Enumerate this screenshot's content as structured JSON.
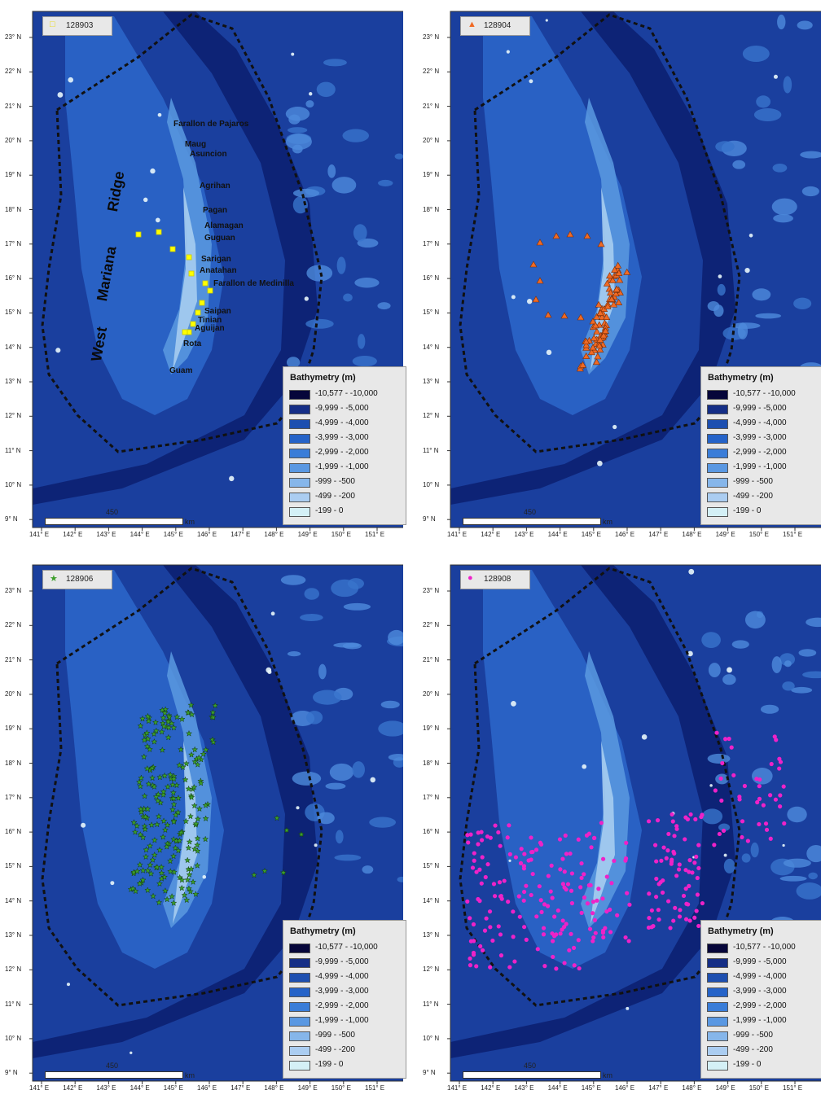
{
  "panels": [
    {
      "series": "128903",
      "symbol": "open-square",
      "symbol_glyph": "□",
      "color": "#ffff00"
    },
    {
      "series": "128904",
      "symbol": "triangle",
      "symbol_glyph": "▲",
      "color": "#f06a24"
    },
    {
      "series": "128906",
      "symbol": "star",
      "symbol_glyph": "★",
      "color": "#3c9e2a"
    },
    {
      "series": "128908",
      "symbol": "circle",
      "symbol_glyph": "●",
      "color": "#ee22c8"
    }
  ],
  "lat_labels": [
    "23° N",
    "22° N",
    "21° N",
    "20° N",
    "19° N",
    "18° N",
    "17° N",
    "16° N",
    "15° N",
    "14° N",
    "13° N",
    "12° N",
    "11° N",
    "10° N",
    "9° N"
  ],
  "lon_labels": [
    "141° E",
    "142° E",
    "143° E",
    "144° E",
    "145° E",
    "146° E",
    "147° E",
    "148° E",
    "149° E",
    "150° E",
    "151° E"
  ],
  "legend": {
    "title": "Bathymetry (m)",
    "classes": [
      {
        "label": "-10,577 - -10,000",
        "color": "#06063a"
      },
      {
        "label": "-9,999 - -5,000",
        "color": "#152e86"
      },
      {
        "label": "-4,999 - -4,000",
        "color": "#1d4fb0"
      },
      {
        "label": "-3,999 - -3,000",
        "color": "#2563c8"
      },
      {
        "label": "-2,999 - -2,000",
        "color": "#3a7dd8"
      },
      {
        "label": "-1,999 - -1,000",
        "color": "#5a98e2"
      },
      {
        "label": "-999 - -500",
        "color": "#86b6ea"
      },
      {
        "label": "-499 - -200",
        "color": "#abcdf1"
      },
      {
        "label": "-199 - 0",
        "color": "#d4f0f6"
      }
    ]
  },
  "scale": {
    "value": "450",
    "unit": "km"
  },
  "places": [
    "Farallon de Pajaros",
    "Maug",
    "Asuncion",
    "Agrihan",
    "Pagan",
    "Alamagan",
    "Guguan",
    "Sarigan",
    "Anatahan",
    "Farallon de Medinilla",
    "Saipan",
    "Tinian",
    "Aguijan",
    "Rota",
    "Guam"
  ],
  "ridge_label": {
    "word1": "West",
    "word2": "Mariana",
    "word3": "Ridge"
  }
}
